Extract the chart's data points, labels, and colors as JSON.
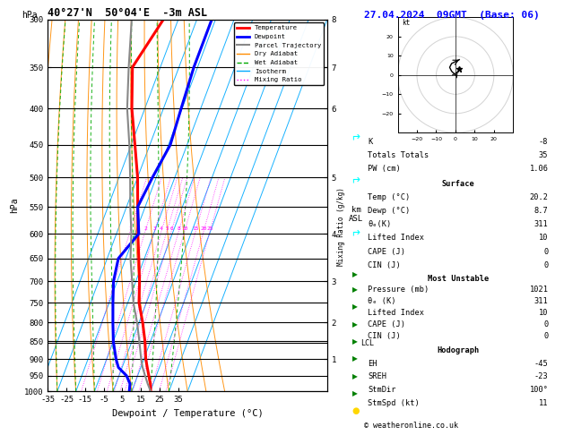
{
  "title_left": "40°27'N  50°04'E  -3m ASL",
  "title_right": "27.04.2024  09GMT  (Base: 06)",
  "xlabel": "Dewpoint / Temperature (°C)",
  "pressure_levels": [
    300,
    350,
    400,
    450,
    500,
    550,
    600,
    650,
    700,
    750,
    800,
    850,
    900,
    950,
    1000
  ],
  "temp_profile_p": [
    1000,
    975,
    950,
    925,
    900,
    850,
    800,
    750,
    700,
    650,
    600,
    550,
    500,
    450,
    400,
    350,
    300
  ],
  "temp_profile_t": [
    20.2,
    18.5,
    16.0,
    13.5,
    11.0,
    7.0,
    2.0,
    -4.0,
    -8.0,
    -13.0,
    -18.5,
    -24.0,
    -30.0,
    -38.0,
    -47.0,
    -55.0,
    -48.0
  ],
  "dewp_profile_p": [
    1000,
    975,
    950,
    925,
    900,
    850,
    800,
    750,
    700,
    650,
    600,
    550,
    500,
    450,
    400,
    350,
    300
  ],
  "dewp_profile_t": [
    8.7,
    7.5,
    4.0,
    -2.0,
    -5.0,
    -10.0,
    -14.0,
    -18.0,
    -22.0,
    -24.0,
    -18.0,
    -24.0,
    -22.0,
    -19.0,
    -20.5,
    -22.0,
    -22.0
  ],
  "parcel_profile_p": [
    1000,
    975,
    950,
    925,
    900,
    850,
    800,
    750,
    700,
    650,
    600,
    550,
    500,
    450,
    400,
    350,
    300
  ],
  "parcel_profile_t": [
    20.2,
    17.0,
    14.0,
    11.0,
    8.5,
    4.0,
    -1.0,
    -7.0,
    -12.0,
    -17.5,
    -22.0,
    -28.0,
    -34.0,
    -41.0,
    -49.5,
    -57.0,
    -65.0
  ],
  "p_min": 300,
  "p_max": 1000,
  "t_min": -35,
  "t_max": 40,
  "isotherm_temps": [
    -40,
    -30,
    -20,
    -10,
    0,
    10,
    20,
    30,
    40
  ],
  "dry_adiabat_temps": [
    -40,
    -30,
    -20,
    -10,
    0,
    10,
    20,
    30,
    40,
    50,
    60
  ],
  "wet_adiabat_base_temps": [
    -30,
    -20,
    -10,
    0,
    10,
    20,
    30
  ],
  "mixing_ratios": [
    1,
    2,
    3,
    4,
    5,
    6,
    8,
    10,
    15,
    20,
    25
  ],
  "lcl_pressure": 855,
  "km_pressures": [
    900,
    800,
    700,
    600,
    500,
    400,
    350,
    300
  ],
  "km_labels": [
    "1",
    "2",
    "3",
    "4",
    "5",
    "6",
    "7",
    "8"
  ],
  "col_temp": "#ff0000",
  "col_dewp": "#0000ff",
  "col_parcel": "#888888",
  "col_dry": "#ff8c00",
  "col_wet": "#00aa00",
  "col_iso": "#00aaff",
  "col_mix": "#ff00ff",
  "stats_K": "-8",
  "stats_TT": "35",
  "stats_PW": "1.06",
  "surf_temp": "20.2",
  "surf_dewp": "8.7",
  "surf_theta": "311",
  "surf_li": "10",
  "surf_cape": "0",
  "surf_cin": "0",
  "mu_pres": "1021",
  "mu_theta": "311",
  "mu_li": "10",
  "mu_cape": "0",
  "mu_cin": "0",
  "eh": "-45",
  "sreh": "-23",
  "stmdir": "100",
  "stmspd": "11",
  "font": "monospace"
}
